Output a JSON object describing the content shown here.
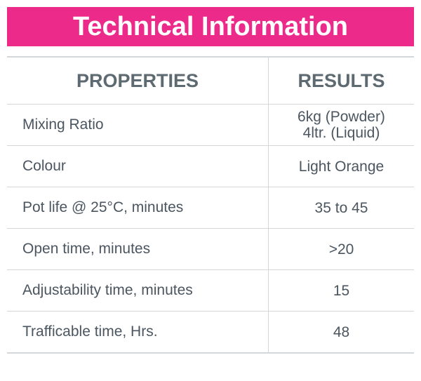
{
  "header": {
    "title": "Technical Information"
  },
  "table": {
    "columns": [
      "PROPERTIES",
      "RESULTS"
    ],
    "rows": [
      [
        "Mixing Ratio",
        [
          "6kg (Powder)",
          "4ltr. (Liquid)"
        ]
      ],
      [
        "Colour",
        "Light Orange"
      ],
      [
        "Pot life @ 25°C, minutes",
        "35 to 45"
      ],
      [
        "Open time, minutes",
        ">20"
      ],
      [
        "Adjustability time, minutes",
        "15"
      ],
      [
        "Trafficable time, Hrs.",
        "48"
      ]
    ]
  }
}
